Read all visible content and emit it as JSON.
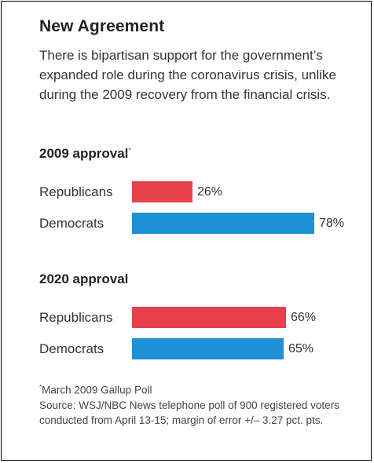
{
  "title": "New Agreement",
  "subtitle": "There is bipartisan support for the government’s expanded role during the coronavirus crisis, unlike during the 2009 recovery from the financial crisis.",
  "colors": {
    "republicans": "#e8404b",
    "democrats": "#1d90d8"
  },
  "chart_data": [
    {
      "type": "bar",
      "title": "2009 approval",
      "title_marker": "*",
      "categories": [
        "Republicans",
        "Democrats"
      ],
      "values": [
        26,
        78
      ],
      "value_labels": [
        "26%",
        "78%"
      ],
      "xlim": [
        0,
        100
      ],
      "orientation": "horizontal"
    },
    {
      "type": "bar",
      "title": "2020 approval",
      "categories": [
        "Republicans",
        "Democrats"
      ],
      "values": [
        66,
        65
      ],
      "value_labels": [
        "66%",
        "65%"
      ],
      "xlim": [
        0,
        100
      ],
      "orientation": "horizontal"
    }
  ],
  "footnote": {
    "marker": "*",
    "line1": "March 2009 Gallup Poll",
    "source": "Source: WSJ/NBC News telephone poll of 900 registered voters conducted from April 13-15; margin of error +/– 3.27 pct. pts."
  }
}
